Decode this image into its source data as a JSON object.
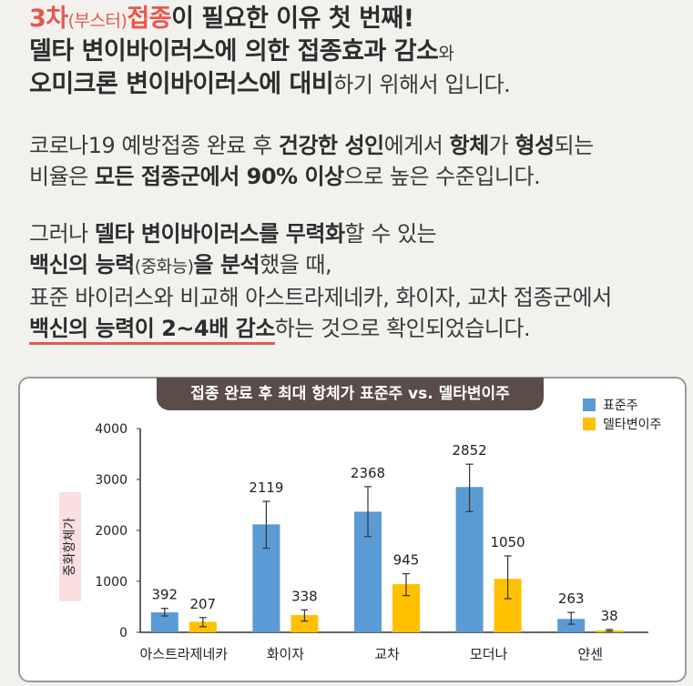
{
  "intro": {
    "l1_a": "3차",
    "l1_b": "(부스터)",
    "l1_c": "접종",
    "l1_d": "이 필요한 이유 첫 번째!",
    "l2_a": "델타 변이바이러스에 의한 접종효과 감소",
    "l2_b": "와",
    "l3_a": "오미크론 변이바이러스에 대비",
    "l3_b": "하기 위해서 입니다."
  },
  "para1": {
    "l1_a": "코로나19 예방접종 완료 후 ",
    "l1_b": "건강한 성인",
    "l1_c": "에게서 ",
    "l1_d": "항체",
    "l1_e": "가 ",
    "l1_f": "형성",
    "l1_g": "되는",
    "l2_a": "비율은 ",
    "l2_b": "모든 접종군에서 90% 이상",
    "l2_c": "으로 높은 수준입니다."
  },
  "para2": {
    "l1_a": "그러나 ",
    "l1_b": "델타 변이바이러스를 무력화",
    "l1_c": "할 수 있는",
    "l2_a": "백신의 능력",
    "l2_b": "(중화능)",
    "l2_c": "을 분석",
    "l2_d": "했을 때,",
    "l3": "표준 바이러스와 비교해 아스트라제네카, 화이자, 교차 접종군에서",
    "l4_a": "백신의 능력이 2~4배 감소",
    "l4_b": "하는 것으로 확인되었습니다."
  },
  "chart_data": {
    "type": "bar",
    "title": "접종 완료 후 최대 항체가 표준주 vs. 델타변이주",
    "ylabel": "중화항체가",
    "xlabel": "",
    "categories": [
      "아스트라제네카",
      "화이자",
      "교차",
      "모더나",
      "얀센"
    ],
    "ylim": [
      0,
      4000
    ],
    "yticks": [
      0,
      1000,
      2000,
      3000,
      4000
    ],
    "legend_position": "top-right",
    "grid": false,
    "series": [
      {
        "name": "표준주",
        "color": "#5b9bd5",
        "values": [
          392,
          2119,
          2368,
          2852,
          263
        ],
        "labels": [
          "392",
          "2119",
          "2368",
          "2852",
          "263"
        ],
        "err_low": [
          320,
          1650,
          1880,
          2370,
          160
        ],
        "err_high": [
          470,
          2570,
          2860,
          3300,
          390
        ]
      },
      {
        "name": "델타변이주",
        "color": "#ffc000",
        "values": [
          207,
          338,
          945,
          1050,
          38
        ],
        "labels": [
          "207",
          "338",
          "945",
          "1050",
          "38"
        ],
        "err_low": [
          110,
          220,
          720,
          660,
          20
        ],
        "err_high": [
          290,
          440,
          1150,
          1500,
          55
        ]
      }
    ]
  }
}
